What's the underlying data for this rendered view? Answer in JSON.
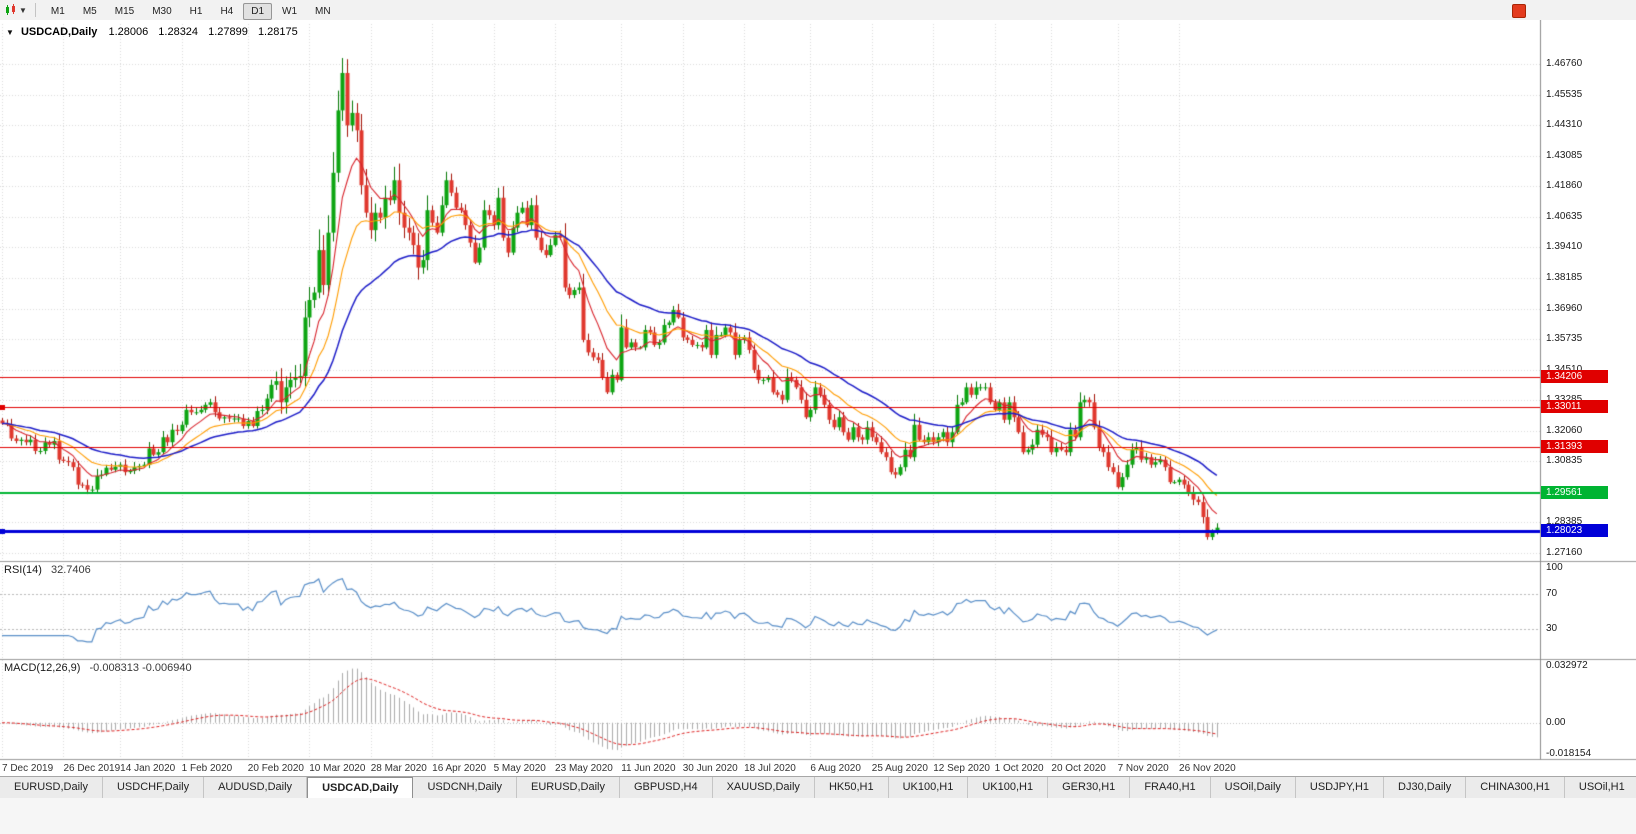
{
  "toolbar": {
    "timeframes": [
      "M1",
      "M5",
      "M15",
      "M30",
      "H1",
      "H4",
      "D1",
      "W1",
      "MN"
    ],
    "active_timeframe": "D1",
    "chart_type_icon": "candlestick-chart-icon",
    "dropdown_caret": "▼"
  },
  "chart_data": {
    "type": "candlestick",
    "symbol": "USDCAD",
    "period": "Daily",
    "title": "USDCAD,Daily",
    "ohlc_display": {
      "open": "1.28006",
      "high": "1.28324",
      "low": "1.27899",
      "close": "1.28175"
    },
    "collapse_icon": "▼",
    "y_tick_labels": [
      "1.46760",
      "1.45535",
      "1.44310",
      "1.43085",
      "1.41860",
      "1.40635",
      "1.39410",
      "1.38185",
      "1.36960",
      "1.35735",
      "1.34510",
      "1.33285",
      "1.32060",
      "1.30835",
      "1.29610",
      "1.28385",
      "1.27160"
    ],
    "x_tick_labels": [
      "7 Dec 2019",
      "26 Dec 2019",
      "14 Jan 2020",
      "1 Feb 2020",
      "20 Feb 2020",
      "10 Mar 2020",
      "28 Mar 2020",
      "16 Apr 2020",
      "5 May 2020",
      "23 May 2020",
      "11 Jun 2020",
      "30 Jun 2020",
      "18 Jul 2020",
      "6 Aug 2020",
      "25 Aug 2020",
      "12 Sep 2020",
      "1 Oct 2020",
      "20 Oct 2020",
      "7 Nov 2020",
      "26 Nov 2020"
    ],
    "x_tick_indices": [
      0,
      13,
      25,
      38,
      52,
      65,
      78,
      91,
      104,
      117,
      131,
      144,
      157,
      171,
      184,
      197,
      210,
      222,
      236,
      249
    ],
    "closes": [
      1.3235,
      1.323,
      1.3175,
      1.3165,
      1.317,
      1.316,
      1.317,
      1.3125,
      1.3125,
      1.316,
      1.315,
      1.3165,
      1.309,
      1.3085,
      1.308,
      1.306,
      1.299,
      1.2988,
      1.297,
      1.297,
      1.3025,
      1.303,
      1.3058,
      1.305,
      1.3062,
      1.307,
      1.304,
      1.3045,
      1.306,
      1.3065,
      1.307,
      1.3135,
      1.311,
      1.312,
      1.318,
      1.316,
      1.321,
      1.3205,
      1.323,
      1.329,
      1.328,
      1.328,
      1.329,
      1.331,
      1.332,
      1.328,
      1.3255,
      1.326,
      1.3255,
      1.3255,
      1.3255,
      1.3225,
      1.3245,
      1.3225,
      1.3285,
      1.329,
      1.3335,
      1.339,
      1.3405,
      1.332,
      1.338,
      1.341,
      1.342,
      1.3425,
      1.366,
      1.373,
      1.376,
      1.393,
      1.379,
      1.4,
      1.424,
      1.449,
      1.464,
      1.443,
      1.448,
      1.441,
      1.419,
      1.408,
      1.401,
      1.408,
      1.406,
      1.414,
      1.413,
      1.421,
      1.408,
      1.402,
      1.4,
      1.395,
      1.386,
      1.389,
      1.409,
      1.404,
      1.4,
      1.411,
      1.421,
      1.416,
      1.41,
      1.409,
      1.403,
      1.396,
      1.388,
      1.394,
      1.409,
      1.407,
      1.403,
      1.414,
      1.398,
      1.392,
      1.402,
      1.408,
      1.41,
      1.403,
      1.411,
      1.398,
      1.393,
      1.391,
      1.395,
      1.399,
      1.398,
      1.378,
      1.375,
      1.377,
      1.378,
      1.357,
      1.352,
      1.35,
      1.349,
      1.342,
      1.336,
      1.343,
      1.341,
      1.362,
      1.354,
      1.356,
      1.354,
      1.354,
      1.361,
      1.36,
      1.355,
      1.356,
      1.363,
      1.364,
      1.369,
      1.366,
      1.358,
      1.357,
      1.355,
      1.355,
      1.354,
      1.361,
      1.351,
      1.359,
      1.359,
      1.362,
      1.36,
      1.351,
      1.357,
      1.358,
      1.353,
      1.345,
      1.341,
      1.341,
      1.342,
      1.336,
      1.335,
      1.333,
      1.342,
      1.341,
      1.338,
      1.333,
      1.326,
      1.329,
      1.338,
      1.335,
      1.331,
      1.325,
      1.322,
      1.326,
      1.32,
      1.317,
      1.322,
      1.318,
      1.317,
      1.322,
      1.318,
      1.316,
      1.312,
      1.31,
      1.304,
      1.303,
      1.306,
      1.313,
      1.31,
      1.323,
      1.317,
      1.316,
      1.318,
      1.316,
      1.318,
      1.32,
      1.316,
      1.32,
      1.331,
      1.332,
      1.338,
      1.335,
      1.338,
      1.338,
      1.338,
      1.332,
      1.329,
      1.332,
      1.325,
      1.332,
      1.326,
      1.32,
      1.312,
      1.313,
      1.315,
      1.321,
      1.319,
      1.318,
      1.312,
      1.314,
      1.313,
      1.312,
      1.321,
      1.318,
      1.332,
      1.333,
      1.332,
      1.322,
      1.314,
      1.312,
      1.306,
      1.304,
      1.298,
      1.302,
      1.307,
      1.313,
      1.314,
      1.309,
      1.31,
      1.307,
      1.308,
      1.309,
      1.306,
      1.3,
      1.3,
      1.301,
      1.299,
      1.296,
      1.293,
      1.292,
      1.286,
      1.278,
      1.28,
      1.28175
    ],
    "horizontal_lines": [
      {
        "label": "1.34206",
        "value": 1.34206,
        "color": "#E00000",
        "width": 1,
        "handle": false
      },
      {
        "label": "1.33011",
        "value": 1.33011,
        "color": "#E00000",
        "width": 1,
        "handle": true
      },
      {
        "label": "1.31393",
        "value": 1.31393,
        "color": "#E00000",
        "width": 1,
        "handle": false
      },
      {
        "label": "1.29561",
        "value": 1.29561,
        "color": "#00B432",
        "width": 2,
        "handle": false
      },
      {
        "label": "1.28023",
        "value": 1.28023,
        "color": "#0000D8",
        "width": 3,
        "handle": true
      }
    ],
    "moving_averages": [
      {
        "period": 8,
        "color": "#D8242C"
      },
      {
        "period": 17,
        "color": "#FF9C00"
      },
      {
        "period": 34,
        "color": "#1D1DC8"
      }
    ],
    "rsi": {
      "label": "RSI(14)",
      "period": 14,
      "value": "32.7406",
      "levels": [
        "100",
        "70",
        "30"
      ],
      "level_values": [
        100,
        70,
        30
      ],
      "color": "#5A8FC8"
    },
    "macd": {
      "label": "MACD(12,26,9)",
      "fast": 12,
      "slow": 26,
      "signal": 9,
      "values": "-0.008313 -0.006940",
      "scale_top": "0.032972",
      "scale_zero": "0.00",
      "scale_bottom": "-0.018154",
      "hist_color": "#ABABAB",
      "signal_color": "#DD2222"
    },
    "colors": {
      "grid": "#d9d9d9",
      "candle_up": "#0DA512",
      "candle_up_edge": "#067806",
      "candle_down": "#E0382E",
      "candle_down_edge": "#A51408",
      "axis_line": "#8a8a8a",
      "separator": "#9a9a9a"
    }
  },
  "tabs": {
    "items": [
      {
        "label": "EURUSD,Daily",
        "active": false
      },
      {
        "label": "USDCHF,Daily",
        "active": false
      },
      {
        "label": "AUDUSD,Daily",
        "active": false
      },
      {
        "label": "USDCAD,Daily",
        "active": true
      },
      {
        "label": "USDCNH,Daily",
        "active": false
      },
      {
        "label": "EURUSD,Daily",
        "active": false
      },
      {
        "label": "GBPUSD,H4",
        "active": false
      },
      {
        "label": "XAUUSD,Daily",
        "active": false
      },
      {
        "label": "HK50,H1",
        "active": false
      },
      {
        "label": "UK100,H1",
        "active": false
      },
      {
        "label": "UK100,H1",
        "active": false
      },
      {
        "label": "GER30,H1",
        "active": false
      },
      {
        "label": "FRA40,H1",
        "active": false
      },
      {
        "label": "USOil,Daily",
        "active": false
      },
      {
        "label": "USDJPY,H1",
        "active": false
      },
      {
        "label": "DJ30,Daily",
        "active": false
      },
      {
        "label": "CHINA300,H1",
        "active": false
      },
      {
        "label": "USOil,H1",
        "active": false
      }
    ]
  }
}
